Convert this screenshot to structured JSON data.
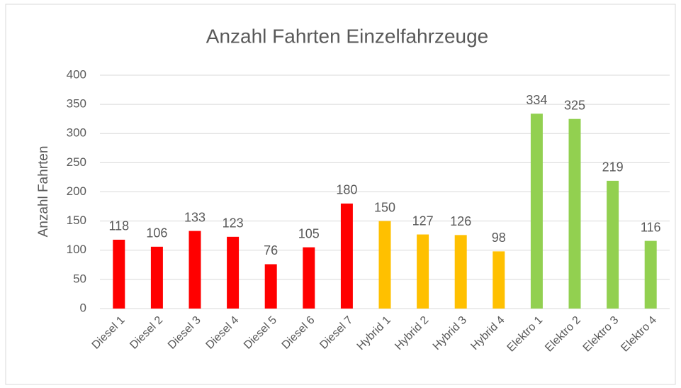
{
  "chart_data": {
    "type": "bar",
    "title": "Anzahl Fahrten Einzelfahrzeuge",
    "y_label": "Anzahl Fahrten",
    "categories": [
      "Diesel 1",
      "Diesel 2",
      "Diesel 3",
      "Diesel 4",
      "Diesel 5",
      "Diesel 6",
      "Diesel 7",
      "Hybrid 1",
      "Hybrid 2",
      "Hybrid 3",
      "Hybrid 4",
      "Elektro 1",
      "Elektro 2",
      "Elektro 3",
      "Elektro 4"
    ],
    "values": [
      118,
      106,
      133,
      123,
      76,
      105,
      180,
      150,
      127,
      126,
      98,
      334,
      325,
      219,
      116
    ],
    "colors": [
      "#ff0000",
      "#ff0000",
      "#ff0000",
      "#ff0000",
      "#ff0000",
      "#ff0000",
      "#ff0000",
      "#ffc000",
      "#ffc000",
      "#ffc000",
      "#ffc000",
      "#92d050",
      "#92d050",
      "#92d050",
      "#92d050"
    ],
    "ylim": [
      0,
      400
    ],
    "yticks": [
      0,
      50,
      100,
      150,
      200,
      250,
      300,
      350,
      400
    ],
    "grid": true
  }
}
